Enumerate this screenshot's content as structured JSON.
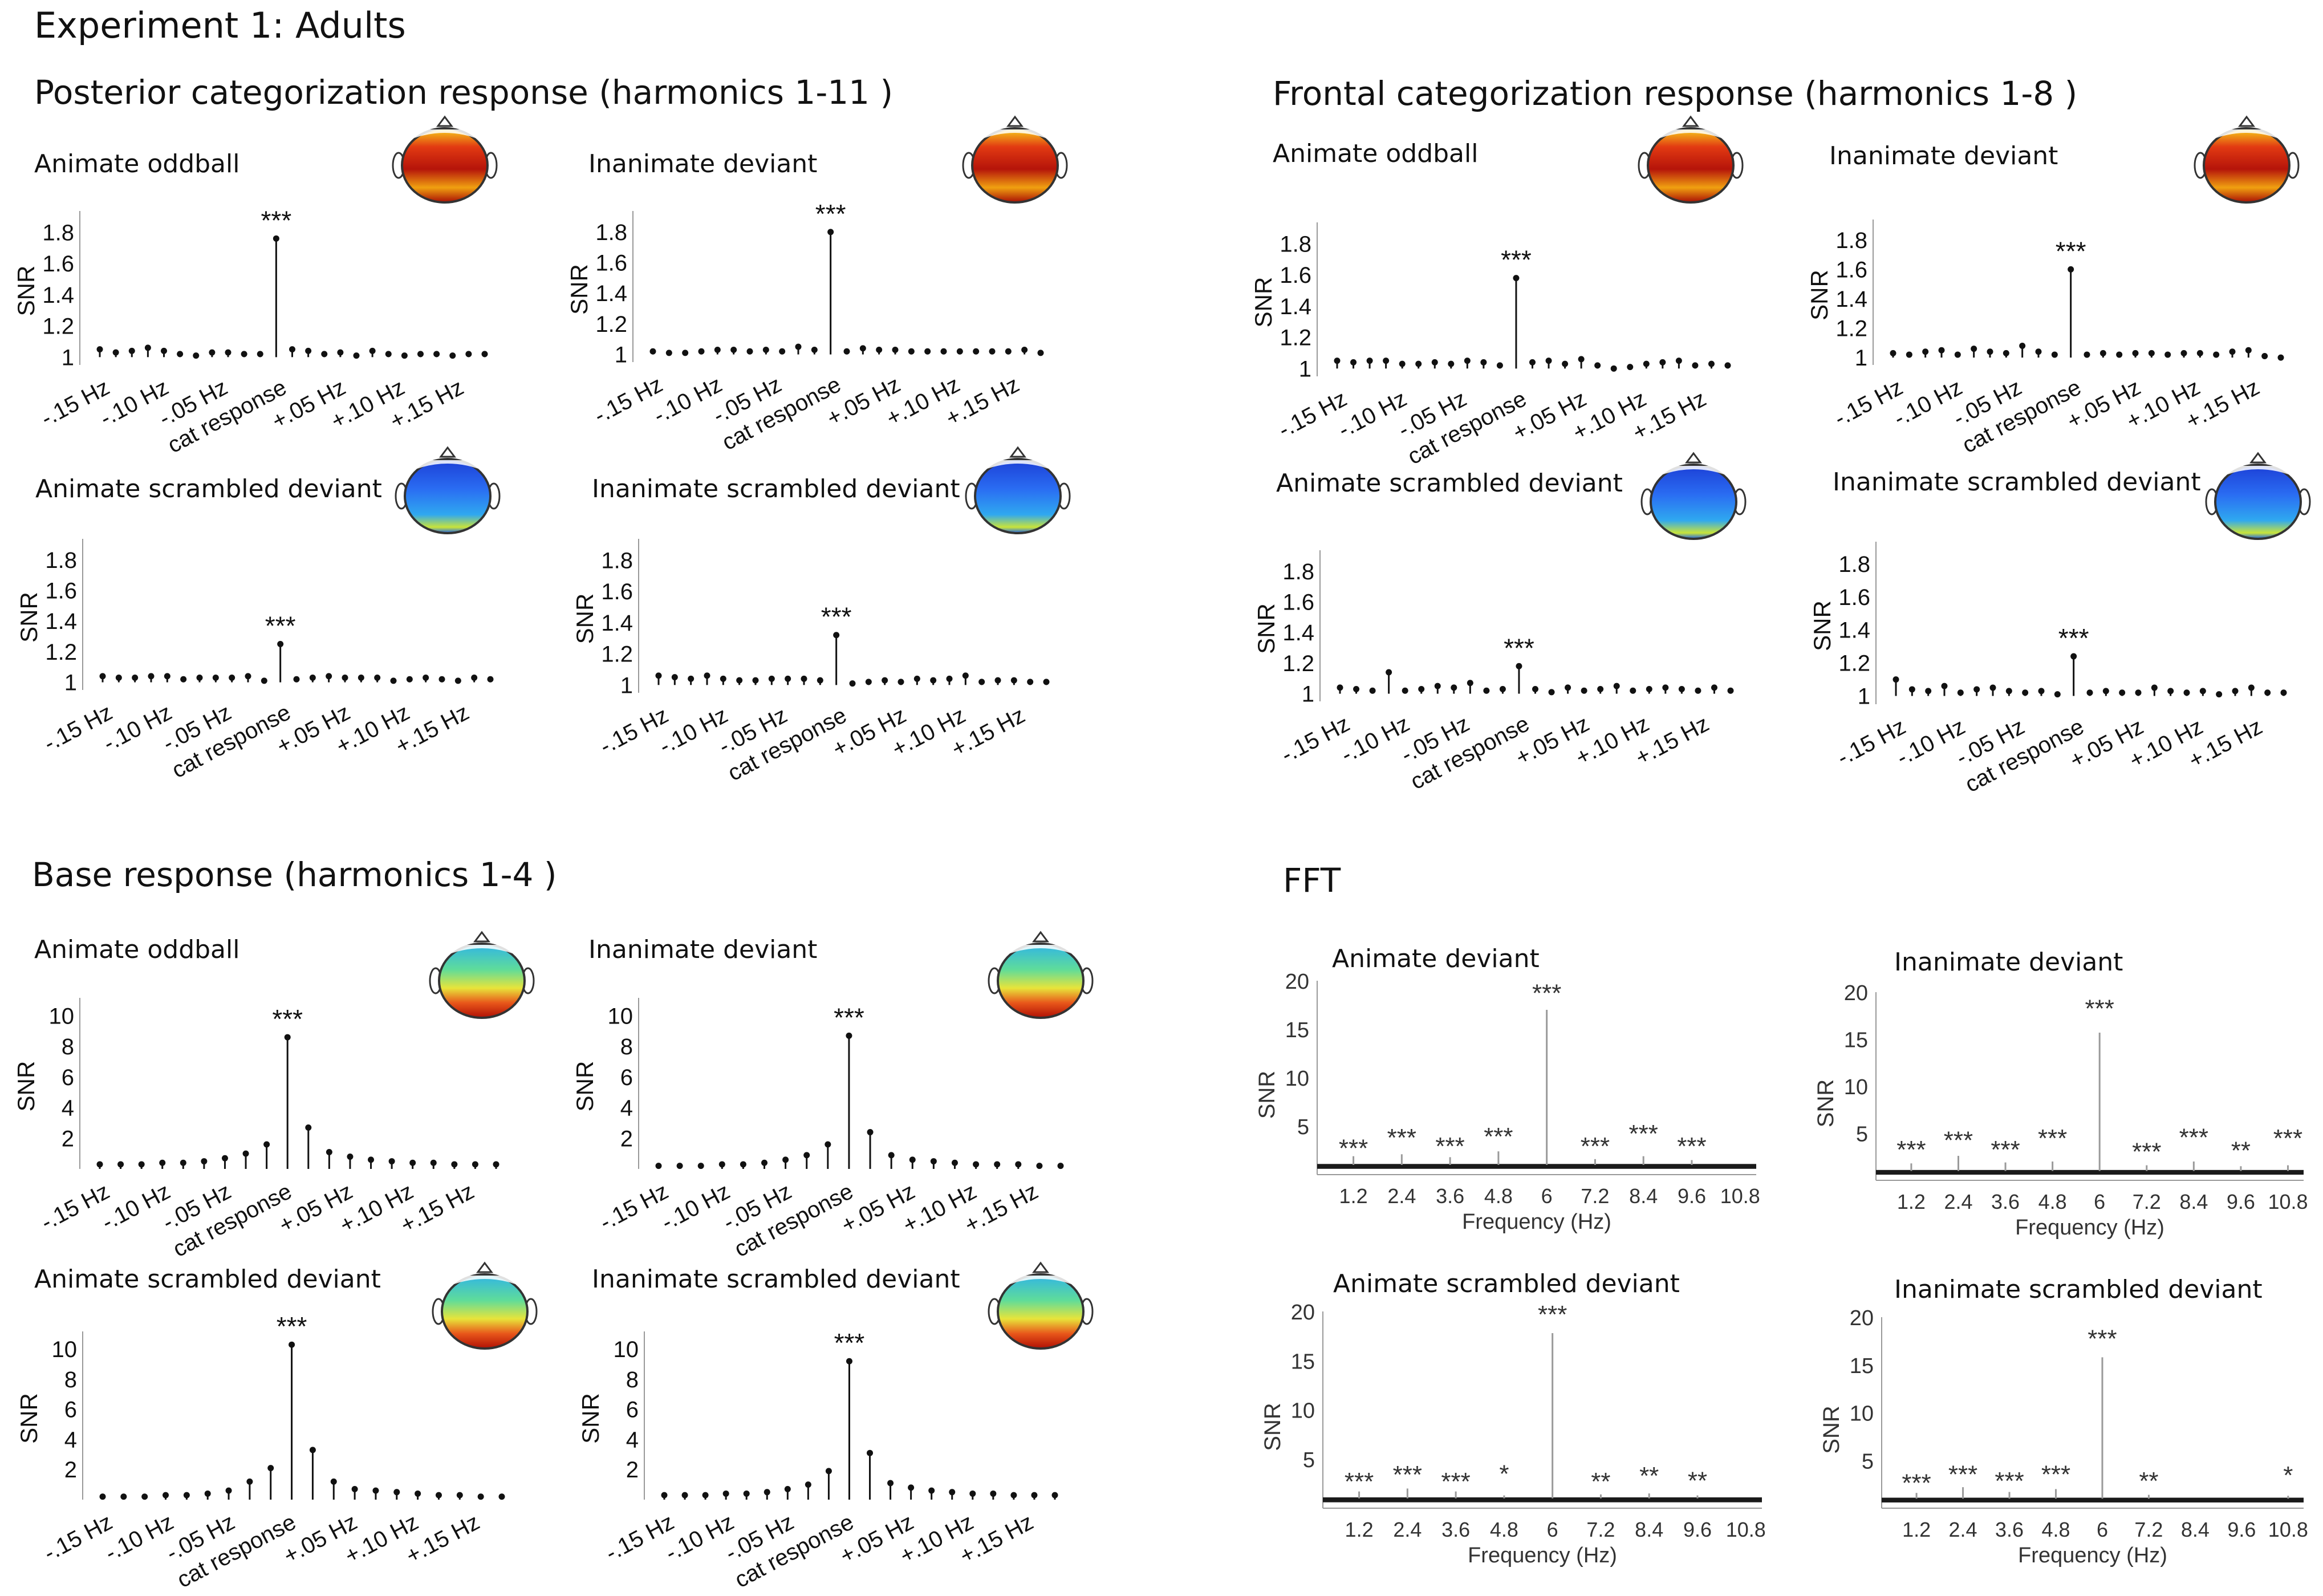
{
  "figure": {
    "title": "Experiment 1: Adults",
    "sections": {
      "posterior": "Posterior categorization response (harmonics 1-11 )",
      "frontal": "Frontal categorization response (harmonics  1-8  )",
      "base": "Base response (harmonics 1-4 )",
      "fft": "FFT"
    }
  },
  "colors": {
    "stem": "#111111",
    "fft_line": "#333333",
    "fft_grey": "#9a9a9a",
    "head_red": "#c81e0c",
    "head_blue": "#1a5ff0"
  },
  "chart_data": [
    {
      "type": "stem",
      "group": "posterior",
      "title": "Animate oddball",
      "ylabel": "SNR",
      "ylim": [
        0.95,
        1.9
      ],
      "yticks": [
        "1",
        "1.2",
        "1.4",
        "1.6",
        "1.8"
      ],
      "yticks_values": [
        1,
        1.2,
        1.4,
        1.6,
        1.8
      ],
      "xticks": [
        "-.15 Hz",
        "-.10 Hz",
        "-.05 Hz",
        "cat response",
        "+.05 Hz",
        "+.10 Hz",
        "+.15 Hz"
      ],
      "values": [
        1.05,
        1.03,
        1.04,
        1.06,
        1.04,
        1.02,
        1.01,
        1.03,
        1.03,
        1.02,
        1.02,
        1.76,
        1.05,
        1.04,
        1.02,
        1.03,
        1.01,
        1.04,
        1.02,
        1.01,
        1.02,
        1.02,
        1.01,
        1.02,
        1.02
      ],
      "annotation": "***",
      "topomap": "red"
    },
    {
      "type": "stem",
      "group": "posterior",
      "title": "Inanimate deviant",
      "ylabel": "SNR",
      "ylim": [
        0.95,
        1.9
      ],
      "yticks": [
        "1",
        "1.2",
        "1.4",
        "1.6",
        "1.8"
      ],
      "yticks_values": [
        1,
        1.2,
        1.4,
        1.6,
        1.8
      ],
      "xticks": [
        "-.15 Hz",
        "-.10 Hz",
        "-.05 Hz",
        "cat response",
        "+.05 Hz",
        "+.10 Hz",
        "+.15 Hz"
      ],
      "values": [
        1.02,
        1.01,
        1.01,
        1.02,
        1.03,
        1.03,
        1.02,
        1.03,
        1.02,
        1.05,
        1.03,
        1.8,
        1.02,
        1.04,
        1.03,
        1.03,
        1.02,
        1.02,
        1.02,
        1.02,
        1.02,
        1.02,
        1.02,
        1.03,
        1.01
      ],
      "annotation": "***",
      "topomap": "red"
    },
    {
      "type": "stem",
      "group": "posterior",
      "title": "Animate scrambled deviant",
      "ylabel": "SNR",
      "ylim": [
        0.95,
        1.9
      ],
      "yticks": [
        "1",
        "1.2",
        "1.4",
        "1.6",
        "1.8"
      ],
      "yticks_values": [
        1,
        1.2,
        1.4,
        1.6,
        1.8
      ],
      "xticks": [
        "-.15 Hz",
        "-.10 Hz",
        "-.05 Hz",
        "cat response",
        "+.05 Hz",
        "+.10 Hz",
        "+.15 Hz"
      ],
      "values": [
        1.04,
        1.03,
        1.03,
        1.04,
        1.04,
        1.02,
        1.03,
        1.03,
        1.03,
        1.04,
        1.01,
        1.25,
        1.02,
        1.03,
        1.04,
        1.03,
        1.03,
        1.03,
        1.01,
        1.02,
        1.03,
        1.02,
        1.01,
        1.03,
        1.02
      ],
      "annotation": "***",
      "topomap": "blue"
    },
    {
      "type": "stem",
      "group": "posterior",
      "title": "Inanimate scrambled deviant",
      "ylabel": "SNR",
      "ylim": [
        0.95,
        1.9
      ],
      "yticks": [
        "1",
        "1.2",
        "1.4",
        "1.6",
        "1.8"
      ],
      "yticks_values": [
        1,
        1.2,
        1.4,
        1.6,
        1.8
      ],
      "xticks": [
        "-.15 Hz",
        "-.10 Hz",
        "-.05 Hz",
        "cat response",
        "+.05 Hz",
        "+.10 Hz",
        "+.15 Hz"
      ],
      "values": [
        1.06,
        1.05,
        1.04,
        1.06,
        1.04,
        1.03,
        1.03,
        1.04,
        1.04,
        1.04,
        1.03,
        1.32,
        1.01,
        1.02,
        1.03,
        1.02,
        1.04,
        1.03,
        1.04,
        1.06,
        1.02,
        1.03,
        1.03,
        1.02,
        1.02
      ],
      "annotation": "***",
      "topomap": "blue"
    },
    {
      "type": "stem",
      "group": "frontal",
      "title": "Animate oddball",
      "ylabel": "SNR",
      "ylim": [
        0.95,
        1.9
      ],
      "yticks": [
        "1",
        "1.2",
        "1.4",
        "1.6",
        "1.8"
      ],
      "yticks_values": [
        1,
        1.2,
        1.4,
        1.6,
        1.8
      ],
      "xticks": [
        "-.15 Hz",
        "-.10 Hz",
        "-.05 Hz",
        "cat response",
        "+.05 Hz",
        "+.10 Hz",
        "+.15 Hz"
      ],
      "values": [
        1.05,
        1.04,
        1.05,
        1.05,
        1.03,
        1.03,
        1.04,
        1.03,
        1.05,
        1.04,
        1.02,
        1.58,
        1.04,
        1.05,
        1.03,
        1.06,
        1.02,
        1.0,
        1.01,
        1.03,
        1.04,
        1.05,
        1.02,
        1.03,
        1.02
      ],
      "annotation": "***",
      "topomap": "red"
    },
    {
      "type": "stem",
      "group": "frontal",
      "title": "Inanimate deviant",
      "ylabel": "SNR",
      "ylim": [
        0.95,
        1.9
      ],
      "yticks": [
        "1",
        "1.2",
        "1.4",
        "1.6",
        "1.8"
      ],
      "yticks_values": [
        1,
        1.2,
        1.4,
        1.6,
        1.8
      ],
      "xticks": [
        "-.15 Hz",
        "-.10 Hz",
        "-.05 Hz",
        "cat response",
        "+.05 Hz",
        "+.10 Hz",
        "+.15 Hz"
      ],
      "values": [
        1.03,
        1.02,
        1.04,
        1.05,
        1.02,
        1.06,
        1.04,
        1.03,
        1.08,
        1.04,
        1.02,
        1.6,
        1.02,
        1.03,
        1.02,
        1.03,
        1.03,
        1.02,
        1.03,
        1.03,
        1.02,
        1.04,
        1.05,
        1.01,
        1.0
      ],
      "annotation": "***",
      "topomap": "red"
    },
    {
      "type": "stem",
      "group": "frontal",
      "title": "Animate scrambled deviant",
      "ylabel": "SNR",
      "ylim": [
        0.95,
        1.9
      ],
      "yticks": [
        "1",
        "1.2",
        "1.4",
        "1.6",
        "1.8"
      ],
      "yticks_values": [
        1,
        1.2,
        1.4,
        1.6,
        1.8
      ],
      "xticks": [
        "-.15 Hz",
        "-.10 Hz",
        "-.05 Hz",
        "cat response",
        "+.05 Hz",
        "+.10 Hz",
        "+.15 Hz"
      ],
      "values": [
        1.04,
        1.03,
        1.02,
        1.14,
        1.02,
        1.03,
        1.05,
        1.04,
        1.07,
        1.02,
        1.03,
        1.18,
        1.03,
        1.01,
        1.04,
        1.02,
        1.03,
        1.05,
        1.02,
        1.03,
        1.04,
        1.03,
        1.02,
        1.04,
        1.02
      ],
      "annotation": "***",
      "topomap": "blue"
    },
    {
      "type": "stem",
      "group": "frontal",
      "title": "Inanimate scrambled deviant",
      "ylabel": "SNR",
      "ylim": [
        0.95,
        1.9
      ],
      "yticks": [
        "1",
        "1.2",
        "1.4",
        "1.6",
        "1.8"
      ],
      "yticks_values": [
        1,
        1.2,
        1.4,
        1.6,
        1.8
      ],
      "xticks": [
        "-.15 Hz",
        "-.10 Hz",
        "-.05 Hz",
        "cat response",
        "+.05 Hz",
        "+.10 Hz",
        "+.15 Hz"
      ],
      "values": [
        1.1,
        1.04,
        1.03,
        1.06,
        1.02,
        1.04,
        1.05,
        1.03,
        1.02,
        1.03,
        1.01,
        1.24,
        1.02,
        1.03,
        1.02,
        1.02,
        1.05,
        1.03,
        1.02,
        1.03,
        1.01,
        1.03,
        1.05,
        1.02,
        1.02
      ],
      "annotation": "***",
      "topomap": "blue"
    },
    {
      "type": "stem",
      "group": "base",
      "title": "Animate oddball",
      "ylabel": "SNR",
      "ylim": [
        0,
        10.8
      ],
      "yticks": [
        "2",
        "4",
        "6",
        "8",
        "10"
      ],
      "yticks_values": [
        2,
        4,
        6,
        8,
        10
      ],
      "xticks": [
        "-.15 Hz",
        "-.10 Hz",
        "-.05 Hz",
        "cat response",
        "+.05 Hz",
        "+.10 Hz",
        "+.15 Hz"
      ],
      "values": [
        0.3,
        0.3,
        0.3,
        0.4,
        0.4,
        0.5,
        0.7,
        1.0,
        1.6,
        8.6,
        2.7,
        1.1,
        0.8,
        0.6,
        0.5,
        0.4,
        0.4,
        0.3,
        0.3,
        0.3
      ],
      "annotation": "***",
      "topomap": "mixed"
    },
    {
      "type": "stem",
      "group": "base",
      "title": "Inanimate deviant",
      "ylabel": "SNR",
      "ylim": [
        0,
        10.8
      ],
      "yticks": [
        "2",
        "4",
        "6",
        "8",
        "10"
      ],
      "yticks_values": [
        2,
        4,
        6,
        8,
        10
      ],
      "xticks": [
        "-.15 Hz",
        "-.10 Hz",
        "-.05 Hz",
        "cat response",
        "+.05 Hz",
        "+.10 Hz",
        "+.15 Hz"
      ],
      "values": [
        0.2,
        0.2,
        0.2,
        0.3,
        0.3,
        0.4,
        0.6,
        0.9,
        1.6,
        8.7,
        2.4,
        0.9,
        0.6,
        0.5,
        0.4,
        0.3,
        0.3,
        0.3,
        0.2,
        0.2
      ],
      "annotation": "***",
      "topomap": "mixed"
    },
    {
      "type": "stem",
      "group": "base",
      "title": "Animate scrambled deviant",
      "ylabel": "SNR",
      "ylim": [
        0,
        10.8
      ],
      "yticks": [
        "2",
        "4",
        "6",
        "8",
        "10"
      ],
      "yticks_values": [
        2,
        4,
        6,
        8,
        10
      ],
      "xticks": [
        "-.15 Hz",
        "-.10 Hz",
        "-.05 Hz",
        "cat response",
        "+.05 Hz",
        "+.10 Hz",
        "+.15 Hz"
      ],
      "values": [
        0.2,
        0.2,
        0.2,
        0.3,
        0.3,
        0.4,
        0.6,
        1.2,
        2.1,
        10.3,
        3.3,
        1.2,
        0.7,
        0.6,
        0.5,
        0.4,
        0.3,
        0.3,
        0.2,
        0.2
      ],
      "annotation": "***",
      "topomap": "mixed"
    },
    {
      "type": "stem",
      "group": "base",
      "title": "Inanimate scrambled deviant",
      "ylabel": "SNR",
      "ylim": [
        0,
        10.8
      ],
      "yticks": [
        "2",
        "4",
        "6",
        "8",
        "10"
      ],
      "yticks_values": [
        2,
        4,
        6,
        8,
        10
      ],
      "xticks": [
        "-.15 Hz",
        "-.10 Hz",
        "-.05 Hz",
        "cat response",
        "+.05 Hz",
        "+.10 Hz",
        "+.15 Hz"
      ],
      "values": [
        0.3,
        0.3,
        0.3,
        0.4,
        0.4,
        0.5,
        0.7,
        1.0,
        1.9,
        9.2,
        3.1,
        1.1,
        0.8,
        0.6,
        0.5,
        0.4,
        0.4,
        0.3,
        0.3,
        0.3
      ],
      "annotation": "***",
      "topomap": "mixed"
    },
    {
      "type": "line",
      "group": "fft",
      "title": "Animate deviant",
      "ylabel": "SNR",
      "xlabel": "Frequency (Hz)",
      "ylim": [
        0,
        20
      ],
      "yticks": [
        "5",
        "10",
        "15",
        "20"
      ],
      "yticks_values": [
        5,
        10,
        15,
        20
      ],
      "xticks": [
        "1.2",
        "2.4",
        "3.6",
        "4.8",
        "6",
        "7.2",
        "8.4",
        "9.6",
        "10.8"
      ],
      "xticks_values": [
        1.2,
        2.4,
        3.6,
        4.8,
        6,
        7.2,
        8.4,
        9.6,
        10.8
      ],
      "peaks": [
        {
          "x": 1.2,
          "y": 1.9
        },
        {
          "x": 2.4,
          "y": 2.1
        },
        {
          "x": 3.6,
          "y": 1.8
        },
        {
          "x": 4.8,
          "y": 2.4
        },
        {
          "x": 6.0,
          "y": 17.0
        },
        {
          "x": 7.2,
          "y": 1.6
        },
        {
          "x": 8.4,
          "y": 1.9
        },
        {
          "x": 9.6,
          "y": 1.5
        }
      ],
      "significance": [
        {
          "x": 1.2,
          "y": 1.5,
          "label": "***"
        },
        {
          "x": 2.4,
          "y": 2.6,
          "label": "***"
        },
        {
          "x": 3.6,
          "y": 1.7,
          "label": "***"
        },
        {
          "x": 4.8,
          "y": 2.7,
          "label": "***"
        },
        {
          "x": 6.0,
          "y": 17.5,
          "label": "***"
        },
        {
          "x": 7.2,
          "y": 1.7,
          "label": "***"
        },
        {
          "x": 8.4,
          "y": 3.0,
          "label": "***"
        },
        {
          "x": 9.6,
          "y": 1.7,
          "label": "***"
        }
      ]
    },
    {
      "type": "line",
      "group": "fft",
      "title": "Inanimate deviant",
      "ylabel": "SNR",
      "xlabel": "Frequency (Hz)",
      "ylim": [
        0,
        20
      ],
      "yticks": [
        "5",
        "10",
        "15",
        "20"
      ],
      "yticks_values": [
        5,
        10,
        15,
        20
      ],
      "xticks": [
        "1.2",
        "2.4",
        "3.6",
        "4.8",
        "6",
        "7.2",
        "8.4",
        "9.6",
        "10.8"
      ],
      "xticks_values": [
        1.2,
        2.4,
        3.6,
        4.8,
        6,
        7.2,
        8.4,
        9.6,
        10.8
      ],
      "peaks": [
        {
          "x": 1.2,
          "y": 1.8
        },
        {
          "x": 2.4,
          "y": 2.6
        },
        {
          "x": 3.6,
          "y": 1.9
        },
        {
          "x": 4.8,
          "y": 2.0
        },
        {
          "x": 6.0,
          "y": 15.7
        },
        {
          "x": 7.2,
          "y": 1.6
        },
        {
          "x": 8.4,
          "y": 2.0
        },
        {
          "x": 9.6,
          "y": 1.5
        },
        {
          "x": 10.8,
          "y": 1.6
        }
      ],
      "significance": [
        {
          "x": 1.2,
          "y": 2.0,
          "label": "***"
        },
        {
          "x": 2.4,
          "y": 3.0,
          "label": "***"
        },
        {
          "x": 3.6,
          "y": 2.0,
          "label": "***"
        },
        {
          "x": 4.8,
          "y": 3.2,
          "label": "***"
        },
        {
          "x": 6.0,
          "y": 17.0,
          "label": "***"
        },
        {
          "x": 7.2,
          "y": 1.8,
          "label": "***"
        },
        {
          "x": 8.4,
          "y": 3.3,
          "label": "***"
        },
        {
          "x": 9.6,
          "y": 1.9,
          "label": "**"
        },
        {
          "x": 10.8,
          "y": 3.2,
          "label": "***"
        }
      ]
    },
    {
      "type": "line",
      "group": "fft",
      "title": "Animate scrambled deviant",
      "ylabel": "SNR",
      "xlabel": "Frequency (Hz)",
      "ylim": [
        0,
        20
      ],
      "yticks": [
        "5",
        "10",
        "15",
        "20"
      ],
      "yticks_values": [
        5,
        10,
        15,
        20
      ],
      "xticks": [
        "1.2",
        "2.4",
        "3.6",
        "4.8",
        "6",
        "7.2",
        "8.4",
        "9.6",
        "10.8"
      ],
      "xticks_values": [
        1.2,
        2.4,
        3.6,
        4.8,
        6,
        7.2,
        8.4,
        9.6,
        10.8
      ],
      "peaks": [
        {
          "x": 1.2,
          "y": 1.7
        },
        {
          "x": 2.4,
          "y": 2.0
        },
        {
          "x": 3.6,
          "y": 1.7
        },
        {
          "x": 4.8,
          "y": 1.3
        },
        {
          "x": 6.0,
          "y": 17.8
        },
        {
          "x": 7.2,
          "y": 1.4
        },
        {
          "x": 8.4,
          "y": 1.5
        },
        {
          "x": 9.6,
          "y": 1.3
        }
      ],
      "significance": [
        {
          "x": 1.2,
          "y": 1.5,
          "label": "***"
        },
        {
          "x": 2.4,
          "y": 2.2,
          "label": "***"
        },
        {
          "x": 3.6,
          "y": 1.5,
          "label": "***"
        },
        {
          "x": 4.8,
          "y": 2.3,
          "label": "*"
        },
        {
          "x": 6.0,
          "y": 18.5,
          "label": "***"
        },
        {
          "x": 7.2,
          "y": 1.5,
          "label": "**"
        },
        {
          "x": 8.4,
          "y": 2.1,
          "label": "**"
        },
        {
          "x": 9.6,
          "y": 1.6,
          "label": "**"
        }
      ]
    },
    {
      "type": "line",
      "group": "fft",
      "title": "Inanimate scrambled  deviant",
      "ylabel": "SNR",
      "xlabel": "Frequency (Hz)",
      "ylim": [
        0,
        20
      ],
      "yticks": [
        "5",
        "10",
        "15",
        "20"
      ],
      "yticks_values": [
        5,
        10,
        15,
        20
      ],
      "xticks": [
        "1.2",
        "2.4",
        "3.6",
        "4.8",
        "6",
        "7.2",
        "8.4",
        "9.6",
        "10.8"
      ],
      "xticks_values": [
        1.2,
        2.4,
        3.6,
        4.8,
        6,
        7.2,
        8.4,
        9.6,
        10.8
      ],
      "peaks": [
        {
          "x": 1.2,
          "y": 1.6
        },
        {
          "x": 2.4,
          "y": 2.2
        },
        {
          "x": 3.6,
          "y": 1.7
        },
        {
          "x": 4.8,
          "y": 2.0
        },
        {
          "x": 6.0,
          "y": 15.8
        },
        {
          "x": 7.2,
          "y": 1.4
        },
        {
          "x": 10.8,
          "y": 1.3
        }
      ],
      "significance": [
        {
          "x": 1.2,
          "y": 1.4,
          "label": "***"
        },
        {
          "x": 2.4,
          "y": 2.3,
          "label": "***"
        },
        {
          "x": 3.6,
          "y": 1.6,
          "label": "***"
        },
        {
          "x": 4.8,
          "y": 2.3,
          "label": "***"
        },
        {
          "x": 6.0,
          "y": 16.5,
          "label": "***"
        },
        {
          "x": 7.2,
          "y": 1.6,
          "label": "**"
        },
        {
          "x": 10.8,
          "y": 2.2,
          "label": "*"
        }
      ]
    }
  ]
}
